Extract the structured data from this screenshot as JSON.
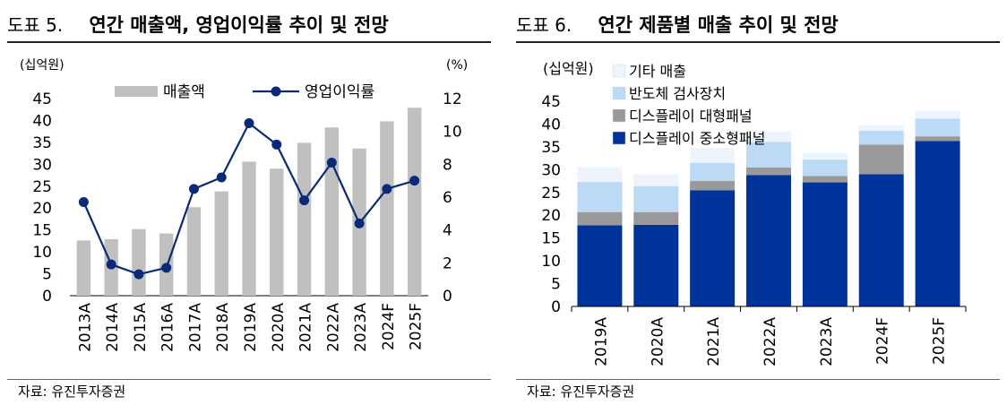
{
  "left": {
    "label": "도표 5.",
    "title": "연간 매출액, 영업이익률 추이 및 전망",
    "source": "자료: 유진투자증권",
    "chart_data": {
      "type": "bar+line",
      "categories": [
        "2013A",
        "2014A",
        "2015A",
        "2016A",
        "2017A",
        "2018A",
        "2019A",
        "2020A",
        "2021A",
        "2022A",
        "2023A",
        "2024F",
        "2025F"
      ],
      "series": [
        {
          "name": "매출액",
          "type": "bar",
          "axis": "left",
          "color": "#c0c0c0",
          "values": [
            12.6,
            12.9,
            15.2,
            14.2,
            20.2,
            23.8,
            30.6,
            29.0,
            34.9,
            38.4,
            33.6,
            39.8,
            42.9
          ]
        },
        {
          "name": "영업이익률",
          "type": "line",
          "axis": "right",
          "color": "#0a2a78",
          "values": [
            5.7,
            1.9,
            1.3,
            1.7,
            6.5,
            7.2,
            10.5,
            9.2,
            5.8,
            8.1,
            4.4,
            6.5,
            7.0
          ]
        }
      ],
      "y_left": {
        "unit": "(십억원)",
        "min": 0,
        "max": 45,
        "ticks": [
          0,
          5,
          10,
          15,
          20,
          25,
          30,
          35,
          40,
          45
        ]
      },
      "y_right": {
        "unit": "(%)",
        "min": 0,
        "max": 12,
        "ticks": [
          0,
          2,
          4,
          6,
          8,
          10,
          12
        ]
      },
      "legend": [
        "매출액",
        "영업이익률"
      ]
    }
  },
  "right": {
    "label": "도표 6.",
    "title": "연간 제품별 매출 추이 및 전망",
    "source": "자료: 유진투자증권",
    "chart_data": {
      "type": "stacked-bar",
      "categories": [
        "2019A",
        "2020A",
        "2021A",
        "2022A",
        "2023A",
        "2024F",
        "2025F"
      ],
      "series": [
        {
          "name": "디스플레이 중소형패널",
          "color": "#003399",
          "values": [
            17.8,
            17.9,
            25.5,
            28.8,
            27.2,
            29.0,
            36.3
          ]
        },
        {
          "name": "디스플레이 대형패널",
          "color": "#999999",
          "values": [
            2.9,
            2.8,
            2.0,
            1.7,
            1.4,
            6.5,
            1.0
          ]
        },
        {
          "name": "반도체 검사장치",
          "color": "#bcd9f5",
          "values": [
            6.6,
            5.7,
            4.0,
            5.6,
            3.6,
            3.0,
            3.9
          ]
        },
        {
          "name": "기타 매출",
          "color": "#eef4fb",
          "values": [
            3.3,
            2.6,
            3.3,
            2.3,
            1.5,
            1.3,
            1.7
          ]
        }
      ],
      "y": {
        "unit": "(십억원)",
        "min": 0,
        "max": 45,
        "ticks": [
          0,
          5,
          10,
          15,
          20,
          25,
          30,
          35,
          40,
          45
        ]
      },
      "legend": [
        "기타 매출",
        "반도체 검사장치",
        "디스플레이 대형패널",
        "디스플레이 중소형패널"
      ]
    }
  }
}
